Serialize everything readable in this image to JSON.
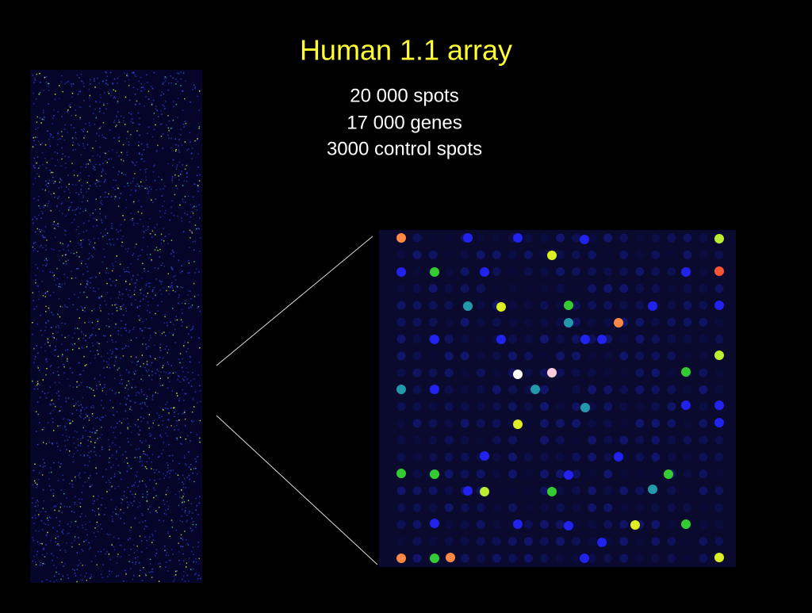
{
  "header": {
    "title": "Human 1.1 array"
  },
  "details": {
    "lines": [
      "20 000 spots",
      "17 000 genes",
      "3000 control spots"
    ]
  }
}
